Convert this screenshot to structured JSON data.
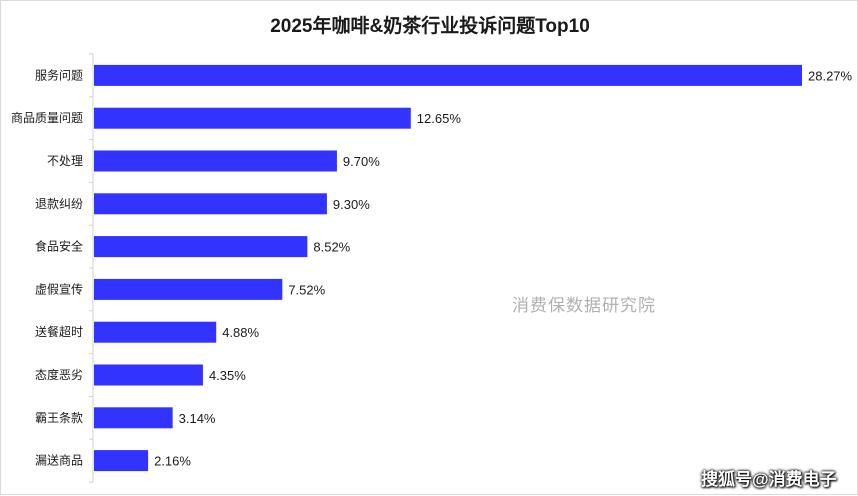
{
  "title": "2025年咖啡&奶茶行业投诉问题Top10",
  "watermark": "消费保数据研究院",
  "source_badge": "搜狐号@消费电子",
  "colors": {
    "bar": "#3333ff",
    "axis": "#d0d0d0",
    "text": "#1a1a1a"
  },
  "chart_data": {
    "type": "bar",
    "orientation": "horizontal",
    "title": "2025年咖啡&奶茶行业投诉问题Top10",
    "categories": [
      "服务问题",
      "商品质量问题",
      "不处理",
      "退款纠纷",
      "食品安全",
      "虚假宣传",
      "送餐超时",
      "态度恶劣",
      "霸王条款",
      "漏送商品"
    ],
    "values": [
      28.27,
      12.65,
      9.7,
      9.3,
      8.52,
      7.52,
      4.88,
      4.35,
      3.14,
      2.16
    ],
    "value_labels": [
      "28.27%",
      "12.65%",
      "9.70%",
      "9.30%",
      "8.52%",
      "7.52%",
      "4.88%",
      "4.35%",
      "3.14%",
      "2.16%"
    ],
    "unit": "%",
    "xlim": [
      0,
      28.27
    ],
    "grid": false,
    "legend": "none"
  }
}
